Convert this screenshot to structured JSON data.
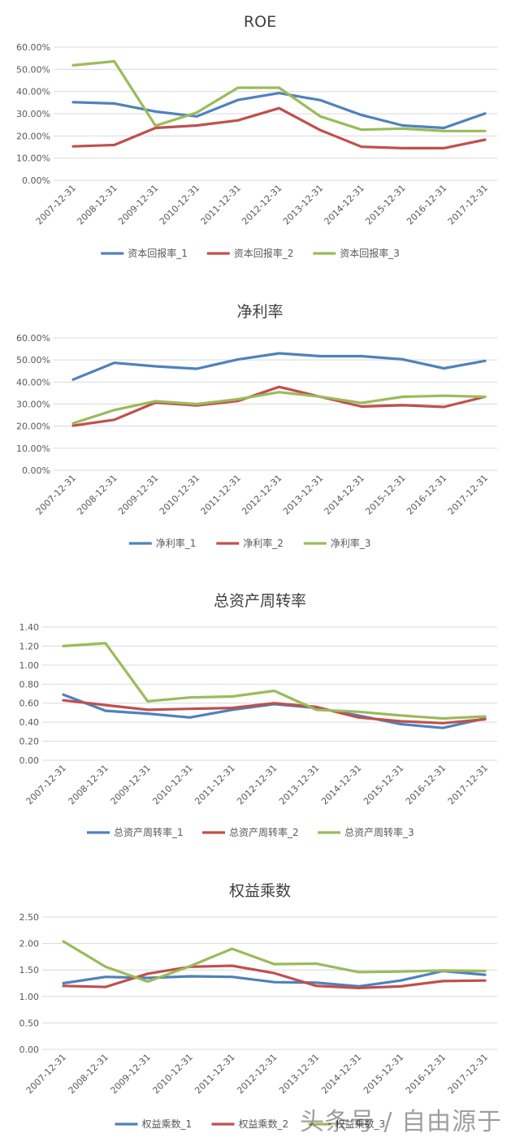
{
  "watermark": "头条号 / 自由源于",
  "colors": {
    "series1": "#4F81BD",
    "series2": "#C0504D",
    "series3": "#9BBB59",
    "grid": "#D9D9D9",
    "text": "#595959",
    "title": "#404040"
  },
  "chart_data": [
    {
      "type": "line",
      "title": "ROE",
      "x": [
        "2007-12-31",
        "2008-12-31",
        "2009-12-31",
        "2010-12-31",
        "2011-12-31",
        "2012-12-31",
        "2013-12-31",
        "2014-12-31",
        "2015-12-31",
        "2016-12-31",
        "2017-12-31"
      ],
      "ylim": [
        0,
        0.6
      ],
      "yticks": [
        0,
        0.1,
        0.2,
        0.3,
        0.4,
        0.5,
        0.6
      ],
      "ytick_labels": [
        "0.00%",
        "10.00%",
        "20.00%",
        "30.00%",
        "40.00%",
        "50.00%",
        "60.00%"
      ],
      "grid": true,
      "legend": "bottom",
      "series": [
        {
          "name": "资本回报率_1",
          "values": [
            0.352,
            0.346,
            0.31,
            0.288,
            0.362,
            0.393,
            0.361,
            0.294,
            0.247,
            0.236,
            0.301
          ]
        },
        {
          "name": "资本回报率_2",
          "values": [
            0.153,
            0.159,
            0.236,
            0.247,
            0.27,
            0.325,
            0.226,
            0.151,
            0.145,
            0.145,
            0.183
          ]
        },
        {
          "name": "资本回报率_3",
          "values": [
            0.518,
            0.536,
            0.246,
            0.305,
            0.417,
            0.417,
            0.288,
            0.228,
            0.233,
            0.222,
            0.222
          ]
        }
      ]
    },
    {
      "type": "line",
      "title": "净利率",
      "x": [
        "2007-12-31",
        "2008-12-31",
        "2009-12-31",
        "2010-12-31",
        "2011-12-31",
        "2012-12-31",
        "2013-12-31",
        "2014-12-31",
        "2015-12-31",
        "2016-12-31",
        "2017-12-31"
      ],
      "ylim": [
        0,
        0.6
      ],
      "yticks": [
        0,
        0.1,
        0.2,
        0.3,
        0.4,
        0.5,
        0.6
      ],
      "ytick_labels": [
        "0.00%",
        "10.00%",
        "20.00%",
        "30.00%",
        "40.00%",
        "50.00%",
        "60.00%"
      ],
      "grid": true,
      "legend": "bottom",
      "series": [
        {
          "name": "净利率_1",
          "values": [
            0.411,
            0.487,
            0.471,
            0.46,
            0.502,
            0.53,
            0.517,
            0.517,
            0.503,
            0.462,
            0.496
          ]
        },
        {
          "name": "净利率_2",
          "values": [
            0.202,
            0.229,
            0.307,
            0.294,
            0.314,
            0.378,
            0.333,
            0.289,
            0.295,
            0.287,
            0.333
          ]
        },
        {
          "name": "净利率_3",
          "values": [
            0.213,
            0.273,
            0.313,
            0.3,
            0.322,
            0.354,
            0.334,
            0.305,
            0.333,
            0.338,
            0.333
          ]
        }
      ]
    },
    {
      "type": "line",
      "title": "总资产周转率",
      "x": [
        "2007-12-31",
        "2008-12-31",
        "2009-12-31",
        "2010-12-31",
        "2011-12-31",
        "2012-12-31",
        "2013-12-31",
        "2014-12-31",
        "2015-12-31",
        "2016-12-31",
        "2017-12-31"
      ],
      "ylim": [
        0,
        1.4
      ],
      "yticks": [
        0,
        0.2,
        0.4,
        0.6,
        0.8,
        1.0,
        1.2,
        1.4
      ],
      "ytick_labels": [
        "0.00",
        "0.20",
        "0.40",
        "0.60",
        "0.80",
        "1.00",
        "1.20",
        "1.40"
      ],
      "grid": true,
      "legend": "bottom",
      "series": [
        {
          "name": "总资产周转率_1",
          "values": [
            0.69,
            0.52,
            0.49,
            0.45,
            0.53,
            0.59,
            0.55,
            0.47,
            0.38,
            0.34,
            0.44
          ]
        },
        {
          "name": "总资产周转率_2",
          "values": [
            0.63,
            0.58,
            0.53,
            0.54,
            0.55,
            0.6,
            0.56,
            0.45,
            0.41,
            0.39,
            0.43
          ]
        },
        {
          "name": "总资产周转率_3",
          "values": [
            1.2,
            1.23,
            0.62,
            0.66,
            0.67,
            0.73,
            0.53,
            0.51,
            0.47,
            0.44,
            0.46
          ]
        }
      ]
    },
    {
      "type": "line",
      "title": "权益乘数",
      "x": [
        "2007-12-31",
        "2008-12-31",
        "2009-12-31",
        "2010-12-31",
        "2011-12-31",
        "2012-12-31",
        "2013-12-31",
        "2014-12-31",
        "2015-12-31",
        "2016-12-31",
        "2017-12-31"
      ],
      "ylim": [
        0,
        2.5
      ],
      "yticks": [
        0,
        0.5,
        1.0,
        1.5,
        2.0,
        2.5
      ],
      "ytick_labels": [
        "0.00",
        "0.50",
        "1.00",
        "1.50",
        "2.00",
        "2.50"
      ],
      "grid": true,
      "legend": "bottom",
      "series": [
        {
          "name": "权益乘数_1",
          "values": [
            1.25,
            1.37,
            1.35,
            1.38,
            1.37,
            1.27,
            1.26,
            1.19,
            1.3,
            1.48,
            1.41
          ]
        },
        {
          "name": "权益乘数_2",
          "values": [
            1.2,
            1.18,
            1.43,
            1.56,
            1.58,
            1.44,
            1.2,
            1.16,
            1.19,
            1.29,
            1.3
          ]
        },
        {
          "name": "权益乘数_3",
          "values": [
            2.04,
            1.56,
            1.28,
            1.57,
            1.9,
            1.61,
            1.62,
            1.46,
            1.47,
            1.49,
            1.48
          ]
        }
      ]
    }
  ]
}
